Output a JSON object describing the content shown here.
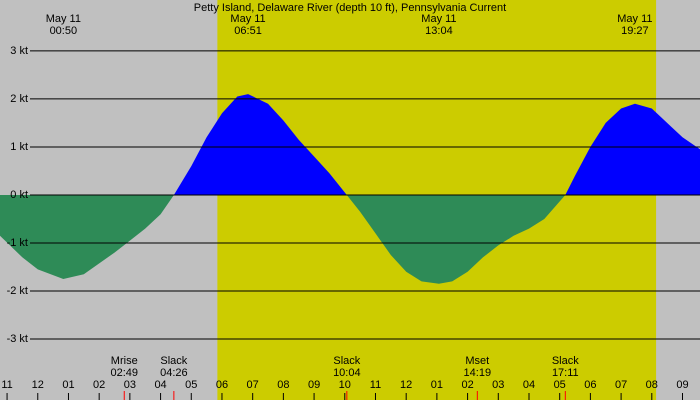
{
  "chart_data": {
    "type": "area",
    "title": "Petty Island, Delaware River (depth 10 ft), Pennsylvania Current",
    "xlim": [
      -1.23,
      21.57
    ],
    "ylim": [
      -4.27,
      4.06
    ],
    "daylight": [
      5.85,
      20.14
    ],
    "flood_color": "#0000ff",
    "ebb_color": "#2e8b57",
    "background_color": "#c0c0c0",
    "daylight_color": "#cccc00",
    "grid": true,
    "yticks": [
      {
        "value": 3,
        "label": "3 kt"
      },
      {
        "value": 2,
        "label": "2 kt"
      },
      {
        "value": 1,
        "label": "1 kt"
      },
      {
        "value": 0,
        "label": "0 kt"
      },
      {
        "value": -1,
        "label": "-1 kt"
      },
      {
        "value": -2,
        "label": "-2 kt"
      },
      {
        "value": -3,
        "label": "-3 kt"
      }
    ],
    "xticks": [
      {
        "value": -1,
        "label": "11"
      },
      {
        "value": 0,
        "label": "12"
      },
      {
        "value": 1,
        "label": "01"
      },
      {
        "value": 2,
        "label": "02"
      },
      {
        "value": 3,
        "label": "03"
      },
      {
        "value": 4,
        "label": "04"
      },
      {
        "value": 5,
        "label": "05"
      },
      {
        "value": 6,
        "label": "06"
      },
      {
        "value": 7,
        "label": "07"
      },
      {
        "value": 8,
        "label": "08"
      },
      {
        "value": 9,
        "label": "09"
      },
      {
        "value": 10,
        "label": "10"
      },
      {
        "value": 11,
        "label": "11"
      },
      {
        "value": 12,
        "label": "12"
      },
      {
        "value": 13,
        "label": "01"
      },
      {
        "value": 14,
        "label": "02"
      },
      {
        "value": 15,
        "label": "03"
      },
      {
        "value": 16,
        "label": "04"
      },
      {
        "value": 17,
        "label": "05"
      },
      {
        "value": 18,
        "label": "06"
      },
      {
        "value": 19,
        "label": "07"
      },
      {
        "value": 20,
        "label": "08"
      },
      {
        "value": 21,
        "label": "09"
      }
    ],
    "peaks": [
      {
        "x": 0.833,
        "date": "May 11",
        "time": "00:50"
      },
      {
        "x": 6.85,
        "date": "May 11",
        "time": "06:51"
      },
      {
        "x": 13.067,
        "date": "May 11",
        "time": "13:04"
      },
      {
        "x": 19.45,
        "date": "May 11",
        "time": "19:27"
      }
    ],
    "events": [
      {
        "x": 2.817,
        "name": "Mrise",
        "time": "02:49"
      },
      {
        "x": 4.433,
        "name": "Slack",
        "time": "04:26"
      },
      {
        "x": 10.067,
        "name": "Slack",
        "time": "10:04"
      },
      {
        "x": 14.317,
        "name": "Mset",
        "time": "14:19"
      },
      {
        "x": 17.183,
        "name": "Slack",
        "time": "17:11"
      }
    ],
    "series": [
      {
        "x": [
          -1.23,
          -0.5,
          0,
          0.833,
          1.5,
          2.5,
          3,
          3.5,
          4,
          4.433,
          5,
          5.5,
          6,
          6.5,
          6.85,
          7.5,
          8,
          8.5,
          9,
          9.5,
          10.067,
          10.5,
          11,
          11.5,
          12,
          12.5,
          13.067,
          13.5,
          14,
          14.5,
          15,
          15.5,
          16,
          16.5,
          17.183,
          17.5,
          18,
          18.5,
          19,
          19.45,
          20,
          20.5,
          21,
          21.57
        ],
        "values": [
          -0.85,
          -1.3,
          -1.55,
          -1.75,
          -1.65,
          -1.2,
          -0.95,
          -0.7,
          -0.4,
          0,
          0.6,
          1.2,
          1.7,
          2.05,
          2.1,
          1.9,
          1.55,
          1.15,
          0.8,
          0.45,
          0,
          -0.35,
          -0.8,
          -1.25,
          -1.6,
          -1.8,
          -1.85,
          -1.8,
          -1.6,
          -1.3,
          -1.05,
          -0.85,
          -0.7,
          -0.5,
          0,
          0.4,
          1.0,
          1.5,
          1.8,
          1.9,
          1.8,
          1.5,
          1.2,
          0.95
        ]
      }
    ]
  }
}
